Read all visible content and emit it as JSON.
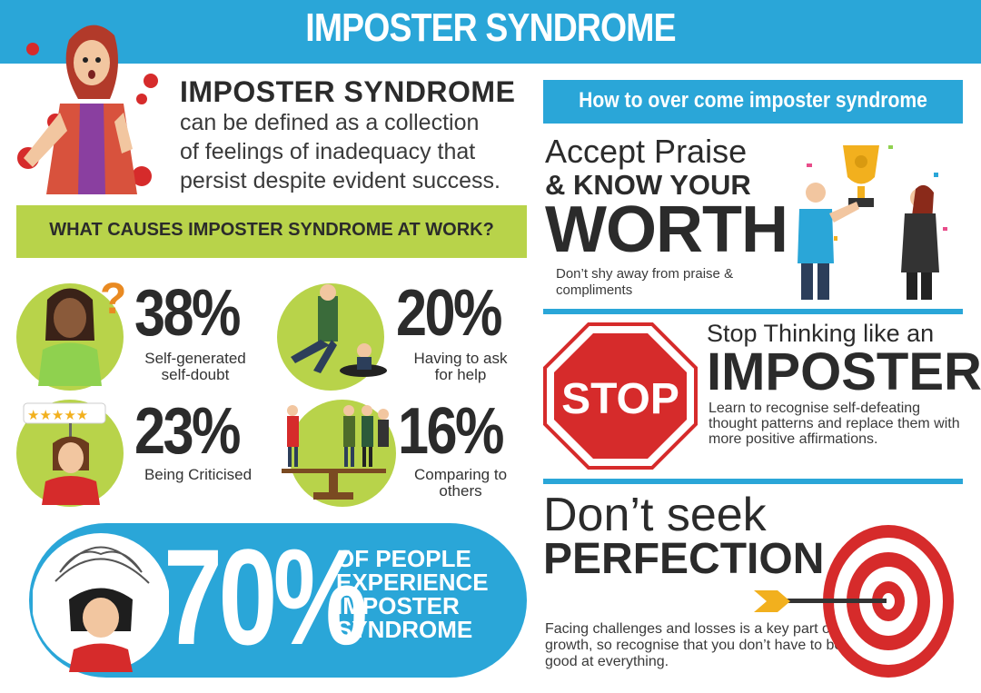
{
  "header": {
    "title": "IMPOSTER SYNDROME"
  },
  "intro": {
    "title": "IMPOSTER SYNDROME",
    "lines": [
      "can be defined as a collection",
      "of feelings of inadequacy that",
      "persist despite evident success."
    ]
  },
  "causes": {
    "title": "WHAT CAUSES IMPOSTER SYNDROME AT WORK?",
    "items": [
      {
        "percent": "38%",
        "caption": [
          "Self-generated",
          "self-doubt"
        ]
      },
      {
        "percent": "20%",
        "caption": [
          "Having to ask",
          "for help"
        ]
      },
      {
        "percent": "23%",
        "caption": [
          "Being Criticised"
        ]
      },
      {
        "percent": "16%",
        "caption": [
          "Comparing to",
          "others"
        ]
      }
    ]
  },
  "stat70": {
    "percent": "70%",
    "lines": [
      "OF PEOPLE",
      "EXPERIENCE",
      "IMPOSTER",
      "SYNDROME"
    ]
  },
  "how": {
    "title": "How to over come imposter syndrome"
  },
  "tips": {
    "accept": {
      "line1": "Accept Praise",
      "line2": "& KNOW YOUR",
      "line3": "WORTH",
      "desc": "Don’t shy away from praise & compliments"
    },
    "stop": {
      "sign": "STOP",
      "line1": "Stop Thinking like an",
      "line2": "IMPOSTER",
      "desc": "Learn to recognise self-defeating thought patterns and replace them with more positive affirmations."
    },
    "perfection": {
      "line1": "Don’t seek",
      "line2": "PERFECTION",
      "desc": "Facing challenges and losses is a key part of growth, so recognise that you don’t have to be good at everything."
    }
  },
  "colors": {
    "accent_blue": "#2aa6d8",
    "accent_green": "#b8d34a",
    "stop_red": "#d62b2b"
  }
}
